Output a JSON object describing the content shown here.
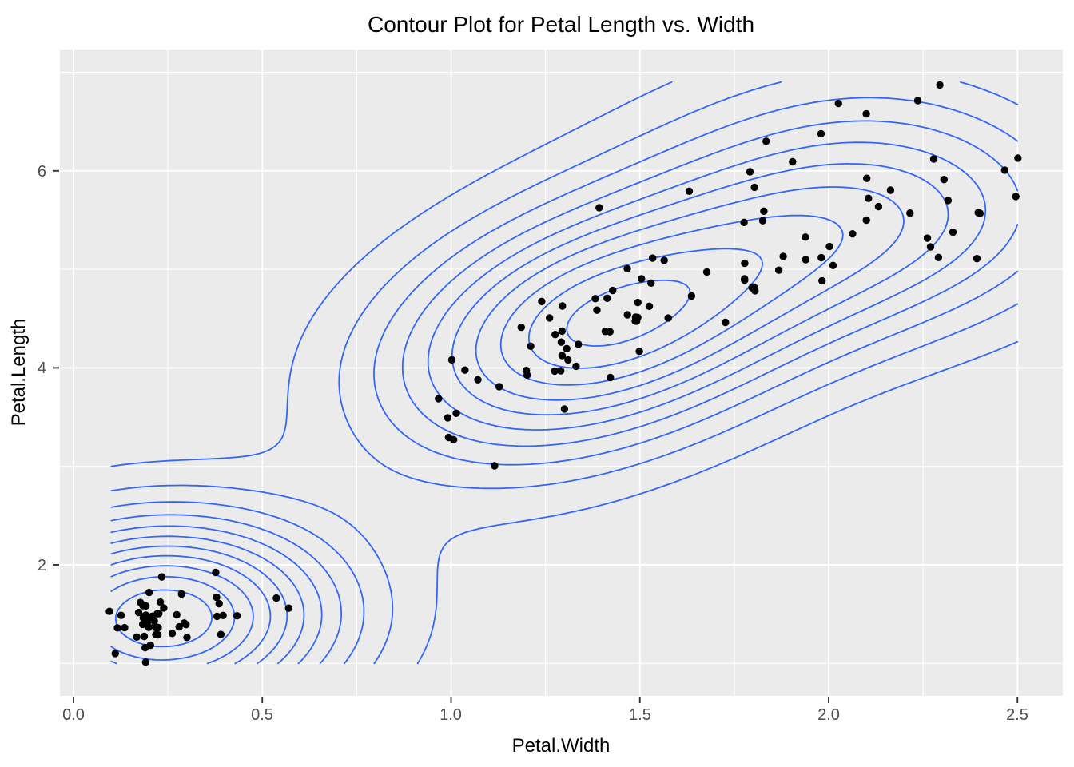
{
  "chart_data": {
    "type": "scatter",
    "overlay": "kde2d-contour-lines",
    "title": "Contour Plot for Petal Length vs. Width",
    "xlabel": "Petal.Width",
    "ylabel": "Petal.Length",
    "x_tick_labels": [
      "0.0",
      "0.5",
      "1.0",
      "1.5",
      "2.0",
      "2.5"
    ],
    "x_tick_values": [
      0.0,
      0.5,
      1.0,
      1.5,
      2.0,
      2.5
    ],
    "x_minor_tick_values": [
      0.25,
      0.75,
      1.25,
      1.75,
      2.25
    ],
    "y_tick_labels": [
      "2",
      "4",
      "6"
    ],
    "y_tick_values": [
      2,
      4,
      6
    ],
    "y_minor_tick_values": [
      1,
      3,
      5,
      7
    ],
    "xlim": [
      -0.036,
      2.621
    ],
    "ylim": [
      0.647,
      7.251
    ],
    "grid": "on",
    "legend": "none",
    "jitter_amount": {
      "x": 0.04,
      "y": 0.04
    },
    "colors": {
      "panel_bg": "#EBEBEB",
      "grid": "#FFFFFF",
      "contour": "#3366FF",
      "point": "#000000",
      "tick_mark": "#333333",
      "tick_text": "#4D4D4D",
      "title_text": "#000000"
    },
    "points": [
      [
        0.2,
        1.4
      ],
      [
        0.2,
        1.4
      ],
      [
        0.2,
        1.3
      ],
      [
        0.2,
        1.5
      ],
      [
        0.2,
        1.4
      ],
      [
        0.4,
        1.7
      ],
      [
        0.3,
        1.4
      ],
      [
        0.2,
        1.5
      ],
      [
        0.2,
        1.4
      ],
      [
        0.1,
        1.5
      ],
      [
        0.2,
        1.5
      ],
      [
        0.2,
        1.6
      ],
      [
        0.1,
        1.4
      ],
      [
        0.1,
        1.1
      ],
      [
        0.2,
        1.2
      ],
      [
        0.4,
        1.5
      ],
      [
        0.4,
        1.3
      ],
      [
        0.3,
        1.4
      ],
      [
        0.3,
        1.7
      ],
      [
        0.3,
        1.5
      ],
      [
        0.2,
        1.7
      ],
      [
        0.4,
        1.5
      ],
      [
        0.2,
        1.0
      ],
      [
        0.5,
        1.7
      ],
      [
        0.2,
        1.9
      ],
      [
        0.2,
        1.6
      ],
      [
        0.4,
        1.6
      ],
      [
        0.2,
        1.5
      ],
      [
        0.2,
        1.4
      ],
      [
        0.2,
        1.6
      ],
      [
        0.2,
        1.6
      ],
      [
        0.4,
        1.5
      ],
      [
        0.1,
        1.5
      ],
      [
        0.2,
        1.4
      ],
      [
        0.2,
        1.5
      ],
      [
        0.2,
        1.2
      ],
      [
        0.2,
        1.3
      ],
      [
        0.1,
        1.4
      ],
      [
        0.2,
        1.3
      ],
      [
        0.2,
        1.5
      ],
      [
        0.3,
        1.3
      ],
      [
        0.3,
        1.3
      ],
      [
        0.2,
        1.3
      ],
      [
        0.6,
        1.6
      ],
      [
        0.4,
        1.9
      ],
      [
        0.3,
        1.4
      ],
      [
        0.2,
        1.6
      ],
      [
        0.2,
        1.4
      ],
      [
        0.2,
        1.5
      ],
      [
        0.2,
        1.4
      ],
      [
        1.4,
        4.7
      ],
      [
        1.5,
        4.5
      ],
      [
        1.5,
        4.9
      ],
      [
        1.3,
        4.0
      ],
      [
        1.5,
        4.6
      ],
      [
        1.3,
        4.5
      ],
      [
        1.6,
        4.7
      ],
      [
        1.0,
        3.3
      ],
      [
        1.3,
        4.6
      ],
      [
        1.4,
        3.9
      ],
      [
        1.0,
        3.5
      ],
      [
        1.5,
        4.2
      ],
      [
        1.0,
        4.0
      ],
      [
        1.4,
        4.7
      ],
      [
        1.3,
        3.6
      ],
      [
        1.4,
        4.4
      ],
      [
        1.5,
        4.5
      ],
      [
        1.0,
        4.1
      ],
      [
        1.5,
        4.5
      ],
      [
        1.1,
        3.9
      ],
      [
        1.8,
        4.8
      ],
      [
        1.3,
        4.0
      ],
      [
        1.5,
        4.9
      ],
      [
        1.2,
        4.7
      ],
      [
        1.3,
        4.3
      ],
      [
        1.4,
        4.4
      ],
      [
        1.4,
        4.8
      ],
      [
        1.7,
        5.0
      ],
      [
        1.5,
        4.5
      ],
      [
        1.0,
        3.5
      ],
      [
        1.1,
        3.8
      ],
      [
        1.0,
        3.7
      ],
      [
        1.2,
        3.9
      ],
      [
        1.6,
        5.1
      ],
      [
        1.5,
        4.5
      ],
      [
        1.6,
        4.5
      ],
      [
        1.5,
        4.7
      ],
      [
        1.3,
        4.4
      ],
      [
        1.3,
        4.1
      ],
      [
        1.3,
        4.0
      ],
      [
        1.2,
        4.4
      ],
      [
        1.4,
        4.6
      ],
      [
        1.2,
        4.0
      ],
      [
        1.0,
        3.3
      ],
      [
        1.3,
        4.2
      ],
      [
        1.2,
        4.2
      ],
      [
        1.3,
        4.2
      ],
      [
        1.3,
        4.3
      ],
      [
        1.1,
        3.0
      ],
      [
        1.3,
        4.1
      ],
      [
        2.5,
        6.0
      ],
      [
        1.9,
        5.1
      ],
      [
        2.1,
        5.9
      ],
      [
        1.8,
        5.6
      ],
      [
        2.2,
        5.8
      ],
      [
        2.1,
        6.6
      ],
      [
        1.7,
        4.5
      ],
      [
        1.8,
        6.3
      ],
      [
        1.8,
        5.8
      ],
      [
        2.5,
        6.1
      ],
      [
        2.0,
        5.1
      ],
      [
        1.9,
        5.3
      ],
      [
        2.1,
        5.5
      ],
      [
        2.0,
        5.0
      ],
      [
        2.4,
        5.1
      ],
      [
        2.3,
        5.3
      ],
      [
        1.8,
        5.5
      ],
      [
        2.2,
        6.7
      ],
      [
        2.3,
        6.9
      ],
      [
        1.5,
        5.0
      ],
      [
        2.3,
        5.7
      ],
      [
        2.0,
        4.9
      ],
      [
        2.0,
        6.7
      ],
      [
        1.8,
        4.9
      ],
      [
        2.1,
        5.7
      ],
      [
        1.8,
        6.0
      ],
      [
        1.8,
        4.8
      ],
      [
        1.8,
        4.9
      ],
      [
        2.1,
        5.6
      ],
      [
        1.6,
        5.8
      ],
      [
        1.9,
        6.1
      ],
      [
        2.0,
        6.4
      ],
      [
        2.2,
        5.6
      ],
      [
        1.5,
        5.1
      ],
      [
        1.4,
        5.6
      ],
      [
        2.3,
        6.1
      ],
      [
        2.4,
        5.6
      ],
      [
        1.8,
        5.5
      ],
      [
        1.8,
        4.8
      ],
      [
        2.1,
        5.4
      ],
      [
        2.4,
        5.6
      ],
      [
        2.3,
        5.1
      ],
      [
        1.9,
        5.1
      ],
      [
        2.3,
        5.9
      ],
      [
        2.5,
        5.7
      ],
      [
        2.3,
        5.2
      ],
      [
        1.9,
        5.0
      ],
      [
        2.0,
        5.2
      ],
      [
        2.3,
        5.4
      ],
      [
        1.8,
        5.1
      ]
    ]
  }
}
